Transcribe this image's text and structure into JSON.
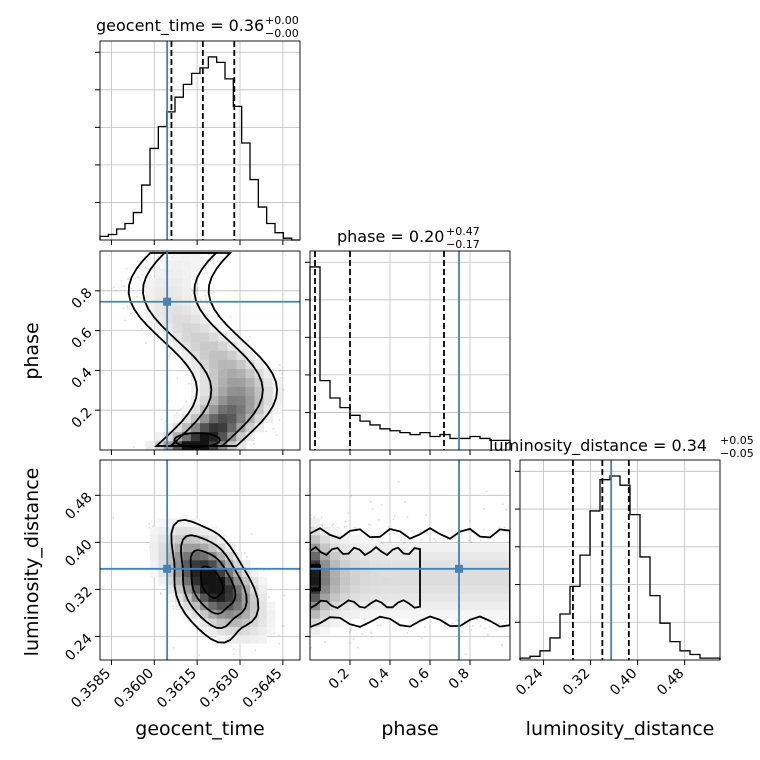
{
  "chart_data": {
    "type": "corner",
    "parameters": [
      "geocent_time",
      "phase",
      "luminosity_distance"
    ],
    "titles": {
      "geocent_time": {
        "name": "geocent_time",
        "median": "0.36",
        "plus": "+0.00",
        "minus": "−0.00"
      },
      "phase": {
        "name": "phase",
        "median": "0.20",
        "plus": "+0.47",
        "minus": "−0.17"
      },
      "luminosity_distance": {
        "name": "luminosity_distance",
        "median": "0.34",
        "plus": "+0.05",
        "minus": "−0.05"
      }
    },
    "axis_labels": {
      "x": [
        "geocent_time",
        "phase",
        "luminosity_distance"
      ],
      "y": [
        "phase",
        "luminosity_distance"
      ]
    },
    "ranges": {
      "geocent_time": [
        0.3581,
        0.3651
      ],
      "phase": [
        0.0,
        1.0
      ],
      "luminosity_distance": [
        0.2,
        0.54
      ]
    },
    "ticks": {
      "geocent_time": [
        {
          "v": 0.3585,
          "label": "0.3585"
        },
        {
          "v": 0.36,
          "label": "0.3600"
        },
        {
          "v": 0.3615,
          "label": "0.3615"
        },
        {
          "v": 0.363,
          "label": "0.3630"
        },
        {
          "v": 0.3645,
          "label": "0.3645"
        }
      ],
      "phase_x": [
        {
          "v": 0.2,
          "label": "0.2"
        },
        {
          "v": 0.4,
          "label": "0.4"
        },
        {
          "v": 0.6,
          "label": "0.6"
        },
        {
          "v": 0.8,
          "label": "0.8"
        }
      ],
      "phase_y": [
        {
          "v": 0.2,
          "label": "0.2"
        },
        {
          "v": 0.4,
          "label": "0.4"
        },
        {
          "v": 0.6,
          "label": "0.6"
        },
        {
          "v": 0.8,
          "label": "0.8"
        }
      ],
      "luminosity_distance": [
        {
          "v": 0.24,
          "label": "0.24"
        },
        {
          "v": 0.32,
          "label": "0.32"
        },
        {
          "v": 0.4,
          "label": "0.40"
        },
        {
          "v": 0.48,
          "label": "0.48"
        }
      ]
    },
    "truth": {
      "geocent_time": 0.36045,
      "phase": 0.745,
      "luminosity_distance": 0.355
    },
    "quantiles": {
      "geocent_time": [
        0.3606,
        0.3617,
        0.3628
      ],
      "phase": [
        0.025,
        0.2,
        0.67
      ],
      "luminosity_distance": [
        0.29,
        0.34,
        0.385
      ]
    },
    "histograms": {
      "geocent_time": [
        2,
        3,
        6,
        9,
        15,
        30,
        50,
        62,
        70,
        78,
        85,
        91,
        94,
        100,
        97,
        88,
        73,
        53,
        33,
        18,
        9,
        4,
        1,
        0
      ],
      "phase": [
        95,
        36,
        27,
        22,
        18,
        15,
        13,
        11,
        10,
        9,
        8,
        9,
        7,
        8,
        6,
        6,
        7,
        6,
        5,
        5
      ],
      "luminosity_distance": [
        1,
        2,
        5,
        12,
        25,
        40,
        57,
        81,
        98,
        100,
        95,
        79,
        56,
        35,
        20,
        10,
        5,
        3,
        1,
        1
      ]
    },
    "grid": true
  }
}
